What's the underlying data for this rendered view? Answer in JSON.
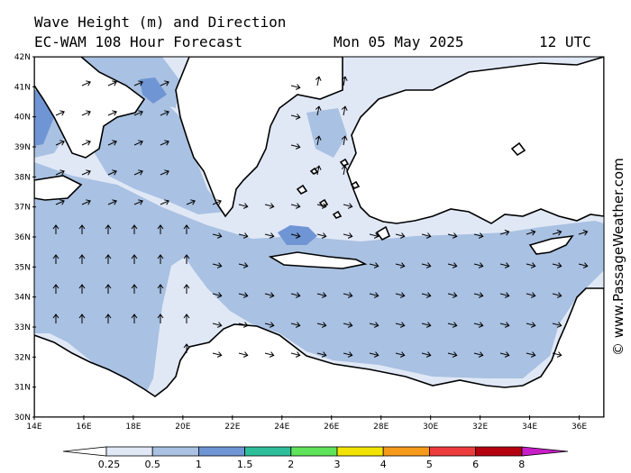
{
  "header": {
    "title": "Wave Height (m) and Direction",
    "model_line": "EC-WAM 108 Hour Forecast",
    "date": "Mon 05 May 2025",
    "time": "12 UTC"
  },
  "credit": "© www.PassageWeather.com",
  "map": {
    "lat_labels": [
      "42N",
      "41N",
      "40N",
      "39N",
      "38N",
      "37N",
      "36N",
      "35N",
      "34N",
      "33N",
      "32N",
      "31N",
      "30N"
    ],
    "lon_labels": [
      "14E",
      "16E",
      "18E",
      "20E",
      "22E",
      "24E",
      "26E",
      "28E",
      "30E",
      "32E",
      "34E",
      "36E"
    ],
    "lat_range": [
      30,
      42
    ],
    "lon_range": [
      14,
      37
    ],
    "wave_direction": "predominantly east / east-southeast in the eastern basin, northward in the Gulf of Sidra"
  },
  "legend": {
    "labels": [
      "0.25",
      "0.5",
      "1",
      "1.5",
      "2",
      "3",
      "4",
      "5",
      "6",
      "8"
    ],
    "colors": [
      "#e0e8f6",
      "#a9c1e2",
      "#6f95d4",
      "#2ebf9a",
      "#5fe35a",
      "#f2e400",
      "#f59a1a",
      "#ee3c3c",
      "#b4000f",
      "#c81ec8"
    ]
  }
}
